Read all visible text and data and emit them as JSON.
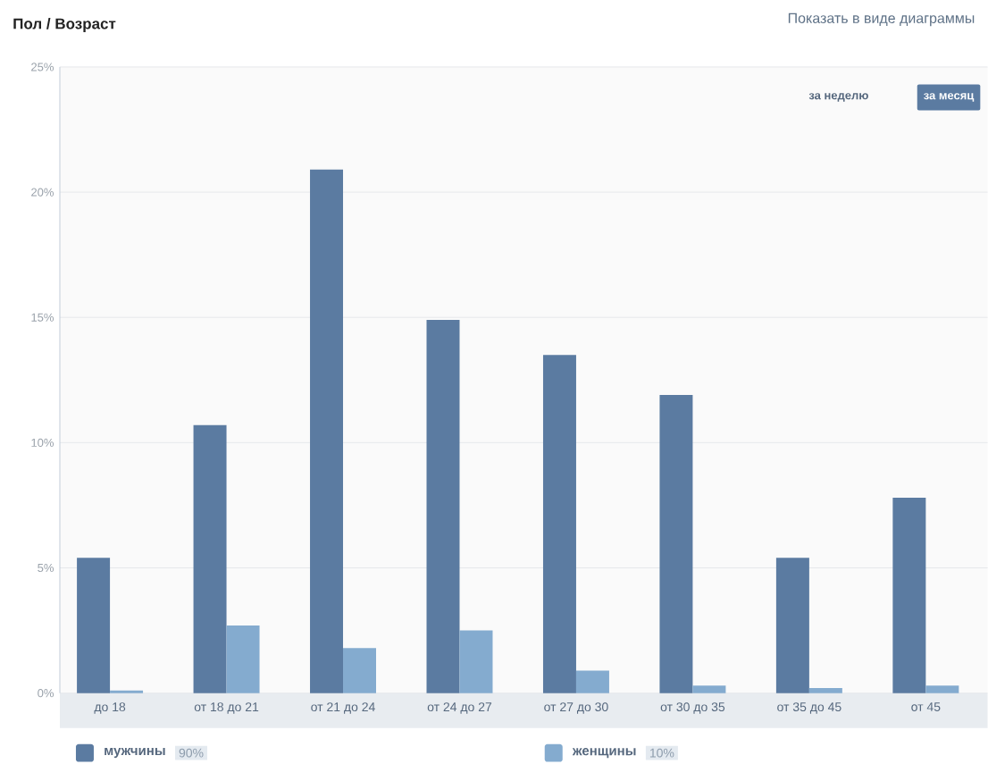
{
  "chart_data": {
    "type": "bar",
    "title": "Пол / Возраст",
    "categories": [
      "до 18",
      "от 18 до 21",
      "от 21 до 24",
      "от 24 до 27",
      "от 27 до 30",
      "от 30 до 35",
      "от 35 до 45",
      "от 45"
    ],
    "series": [
      {
        "name": "мужчины",
        "color": "#5b7ba1",
        "values": [
          5.4,
          10.7,
          20.9,
          14.9,
          13.5,
          11.9,
          5.4,
          7.8
        ]
      },
      {
        "name": "женщины",
        "color": "#84abcf",
        "values": [
          0.1,
          2.7,
          1.8,
          2.5,
          0.9,
          0.3,
          0.2,
          0.3
        ]
      }
    ],
    "ylim": [
      0,
      25
    ],
    "yticks": [
      {
        "value": 0,
        "label": "0%"
      },
      {
        "value": 5,
        "label": "5%"
      },
      {
        "value": 10,
        "label": "10%"
      },
      {
        "value": 15,
        "label": "15%"
      },
      {
        "value": 20,
        "label": "20%"
      },
      {
        "value": 25,
        "label": "25%"
      }
    ],
    "grid": "y",
    "legend": "bottom",
    "annotations": [
      "Показать в виде диаграммы",
      "за неделю",
      "за месяц",
      "90%",
      "10%"
    ]
  }
}
